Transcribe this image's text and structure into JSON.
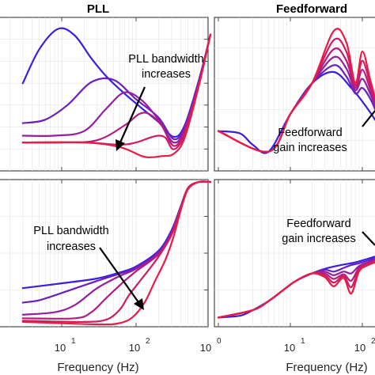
{
  "figure": {
    "titles": {
      "left": "PLL",
      "right": "Feedforward"
    },
    "xlabel": "Frequency (Hz)",
    "tick_labels": {
      "left": [
        "10",
        "1",
        "10",
        "2",
        "10",
        "0"
      ],
      "right": [
        "10",
        "0",
        "10",
        "1",
        "10",
        "2"
      ]
    },
    "annotations": {
      "top_left": [
        "PLL bandwidth",
        "increases"
      ],
      "top_right": [
        "Feedforward",
        "gain increases"
      ],
      "bottom_left": [
        "PLL bandwidth",
        "increases"
      ],
      "bottom_right": [
        "Feedforward",
        "gain increases"
      ]
    },
    "series_colors": [
      "#3a1fe0",
      "#6a1fc0",
      "#941fa0",
      "#b31c80",
      "#cf1c60",
      "#e81c45"
    ]
  },
  "chart_data": [
    {
      "type": "line",
      "panel": "top-left",
      "title": "PLL",
      "xscale": "log",
      "xlim": [
        3,
        1000
      ],
      "grid": true,
      "series": [
        {
          "x": [
            3,
            5,
            9,
            15,
            25,
            40,
            70,
            120,
            200,
            320,
            450,
            700,
            1000
          ],
          "y": [
            0.42,
            0.72,
            0.9,
            0.84,
            0.64,
            0.48,
            0.33,
            0.2,
            0.08,
            -0.05,
            0.05,
            0.45,
            0.85
          ]
        },
        {
          "x": [
            3,
            6,
            12,
            25,
            50,
            100,
            200,
            320,
            450,
            700,
            1000
          ],
          "y": [
            0.07,
            0.1,
            0.23,
            0.43,
            0.45,
            0.28,
            0.12,
            -0.07,
            0.04,
            0.44,
            0.85
          ]
        },
        {
          "x": [
            3,
            8,
            20,
            40,
            70,
            120,
            200,
            320,
            450,
            700,
            1000
          ],
          "y": [
            -0.04,
            -0.04,
            0.0,
            0.2,
            0.34,
            0.27,
            0.1,
            -0.1,
            0.02,
            0.43,
            0.85
          ]
        },
        {
          "x": [
            3,
            10,
            30,
            70,
            110,
            150,
            220,
            320,
            450,
            700,
            1000
          ],
          "y": [
            -0.1,
            -0.1,
            -0.08,
            0.05,
            0.15,
            0.15,
            0.05,
            -0.13,
            0.0,
            0.42,
            0.85
          ]
        },
        {
          "x": [
            3,
            20,
            60,
            100,
            150,
            200,
            250,
            320,
            450,
            700,
            1000
          ],
          "y": [
            -0.1,
            -0.1,
            -0.12,
            -0.1,
            -0.06,
            -0.04,
            -0.06,
            -0.16,
            -0.03,
            0.41,
            0.85
          ]
        },
        {
          "x": [
            3,
            20,
            60,
            120,
            160,
            220,
            320,
            450,
            700,
            1000
          ],
          "y": [
            -0.1,
            -0.1,
            -0.14,
            -0.22,
            -0.23,
            -0.22,
            -0.2,
            -0.06,
            0.4,
            0.85
          ]
        }
      ]
    },
    {
      "type": "line",
      "panel": "top-right",
      "title": "Feedforward",
      "xscale": "log",
      "xlim": [
        1,
        300
      ],
      "grid": true,
      "series": [
        {
          "x": [
            1,
            2,
            3,
            5,
            10,
            20,
            40,
            70,
            100,
            150,
            200,
            300
          ],
          "y": [
            0.0,
            -0.02,
            -0.12,
            -0.18,
            0.15,
            0.42,
            0.52,
            0.38,
            0.26,
            0.1,
            -0.05,
            -0.15
          ]
        },
        {
          "x": [
            1,
            5,
            10,
            20,
            40,
            60,
            80,
            100,
            130,
            160,
            200,
            300
          ],
          "y": [
            0.0,
            -0.18,
            0.15,
            0.42,
            0.58,
            0.48,
            0.33,
            0.38,
            0.28,
            0.15,
            0.0,
            -0.15
          ]
        },
        {
          "x": [
            1,
            5,
            10,
            20,
            40,
            60,
            80,
            100,
            130,
            160,
            200,
            300
          ],
          "y": [
            0.0,
            -0.18,
            0.15,
            0.42,
            0.65,
            0.55,
            0.36,
            0.46,
            0.32,
            0.18,
            0.02,
            -0.15
          ]
        },
        {
          "x": [
            1,
            5,
            10,
            20,
            40,
            60,
            80,
            100,
            130,
            160,
            200,
            300
          ],
          "y": [
            0.0,
            -0.18,
            0.15,
            0.42,
            0.72,
            0.62,
            0.38,
            0.54,
            0.36,
            0.2,
            0.04,
            -0.15
          ]
        },
        {
          "x": [
            1,
            5,
            10,
            20,
            40,
            60,
            80,
            100,
            130,
            160,
            200,
            300
          ],
          "y": [
            0.0,
            -0.18,
            0.15,
            0.42,
            0.8,
            0.7,
            0.4,
            0.62,
            0.4,
            0.22,
            0.06,
            -0.15
          ]
        },
        {
          "x": [
            1,
            5,
            10,
            20,
            40,
            60,
            80,
            100,
            130,
            160,
            200,
            300
          ],
          "y": [
            0.0,
            -0.18,
            0.15,
            0.42,
            0.88,
            0.78,
            0.42,
            0.7,
            0.44,
            0.24,
            0.08,
            -0.15
          ]
        }
      ]
    },
    {
      "type": "line",
      "panel": "bottom-left",
      "xscale": "log",
      "xlim": [
        3,
        1000
      ],
      "grid": true,
      "series": [
        {
          "x": [
            3,
            10,
            30,
            60,
            100,
            200,
            300,
            400,
            500,
            700,
            1000
          ],
          "y": [
            0.12,
            0.16,
            0.2,
            0.25,
            0.3,
            0.43,
            0.6,
            0.8,
            0.95,
            1.0,
            1.0
          ]
        },
        {
          "x": [
            3,
            5,
            10,
            30,
            60,
            100,
            200,
            300,
            400,
            500,
            700,
            1000
          ],
          "y": [
            0.0,
            0.02,
            0.08,
            0.18,
            0.24,
            0.29,
            0.42,
            0.59,
            0.8,
            0.95,
            1.0,
            1.0
          ]
        },
        {
          "x": [
            3,
            8,
            15,
            30,
            60,
            100,
            200,
            300,
            400,
            500,
            700,
            1000
          ],
          "y": [
            -0.1,
            -0.08,
            -0.02,
            0.12,
            0.22,
            0.28,
            0.41,
            0.58,
            0.79,
            0.95,
            1.0,
            1.0
          ]
        },
        {
          "x": [
            3,
            15,
            25,
            40,
            70,
            100,
            200,
            300,
            400,
            500,
            700,
            1000
          ],
          "y": [
            -0.13,
            -0.13,
            -0.08,
            0.04,
            0.18,
            0.26,
            0.4,
            0.57,
            0.79,
            0.95,
            1.0,
            1.0
          ]
        },
        {
          "x": [
            3,
            20,
            40,
            60,
            80,
            120,
            200,
            300,
            400,
            500,
            700,
            1000
          ],
          "y": [
            -0.15,
            -0.16,
            -0.14,
            -0.06,
            0.06,
            0.2,
            0.38,
            0.56,
            0.78,
            0.95,
            1.0,
            1.0
          ]
        },
        {
          "x": [
            3,
            30,
            60,
            90,
            130,
            180,
            250,
            320,
            400,
            500,
            700,
            1000
          ],
          "y": [
            -0.16,
            -0.18,
            -0.17,
            -0.12,
            0.0,
            0.18,
            0.36,
            0.55,
            0.77,
            0.94,
            1.0,
            1.0
          ]
        }
      ]
    },
    {
      "type": "line",
      "panel": "bottom-right",
      "xscale": "log",
      "xlim": [
        1,
        300
      ],
      "grid": true,
      "series": [
        {
          "x": [
            1,
            2,
            3,
            5,
            8,
            12,
            20,
            30,
            50,
            80,
            120,
            200,
            300
          ],
          "y": [
            -0.5,
            -0.48,
            -0.42,
            -0.32,
            -0.2,
            -0.1,
            -0.02,
            0.03,
            0.07,
            0.1,
            0.14,
            0.19,
            0.23
          ]
        },
        {
          "x": [
            1,
            3,
            5,
            8,
            12,
            20,
            30,
            40,
            55,
            70,
            90,
            120,
            200,
            300
          ],
          "y": [
            -0.5,
            -0.42,
            -0.32,
            -0.2,
            -0.1,
            -0.02,
            0.02,
            0.0,
            0.04,
            0.07,
            0.09,
            0.12,
            0.18,
            0.23
          ]
        },
        {
          "x": [
            1,
            3,
            5,
            8,
            12,
            20,
            30,
            40,
            55,
            70,
            90,
            120,
            200,
            300
          ],
          "y": [
            -0.5,
            -0.42,
            -0.32,
            -0.2,
            -0.1,
            -0.02,
            0.0,
            -0.04,
            0.0,
            -0.02,
            0.06,
            0.1,
            0.17,
            0.23
          ]
        },
        {
          "x": [
            1,
            3,
            5,
            8,
            12,
            20,
            30,
            40,
            55,
            70,
            90,
            120,
            200,
            300
          ],
          "y": [
            -0.5,
            -0.42,
            -0.32,
            -0.2,
            -0.1,
            -0.02,
            -0.02,
            -0.08,
            -0.03,
            -0.1,
            0.04,
            0.09,
            0.16,
            0.23
          ]
        },
        {
          "x": [
            1,
            3,
            5,
            8,
            12,
            20,
            30,
            40,
            55,
            70,
            90,
            120,
            200,
            300
          ],
          "y": [
            -0.5,
            -0.42,
            -0.32,
            -0.2,
            -0.1,
            -0.02,
            -0.04,
            -0.12,
            -0.05,
            -0.17,
            0.02,
            0.08,
            0.15,
            0.23
          ]
        },
        {
          "x": [
            1,
            3,
            5,
            8,
            12,
            20,
            30,
            40,
            55,
            70,
            90,
            120,
            200,
            300
          ],
          "y": [
            -0.5,
            -0.42,
            -0.32,
            -0.2,
            -0.1,
            -0.02,
            -0.06,
            -0.16,
            -0.07,
            -0.24,
            0.0,
            0.07,
            0.14,
            0.23
          ]
        }
      ]
    }
  ]
}
